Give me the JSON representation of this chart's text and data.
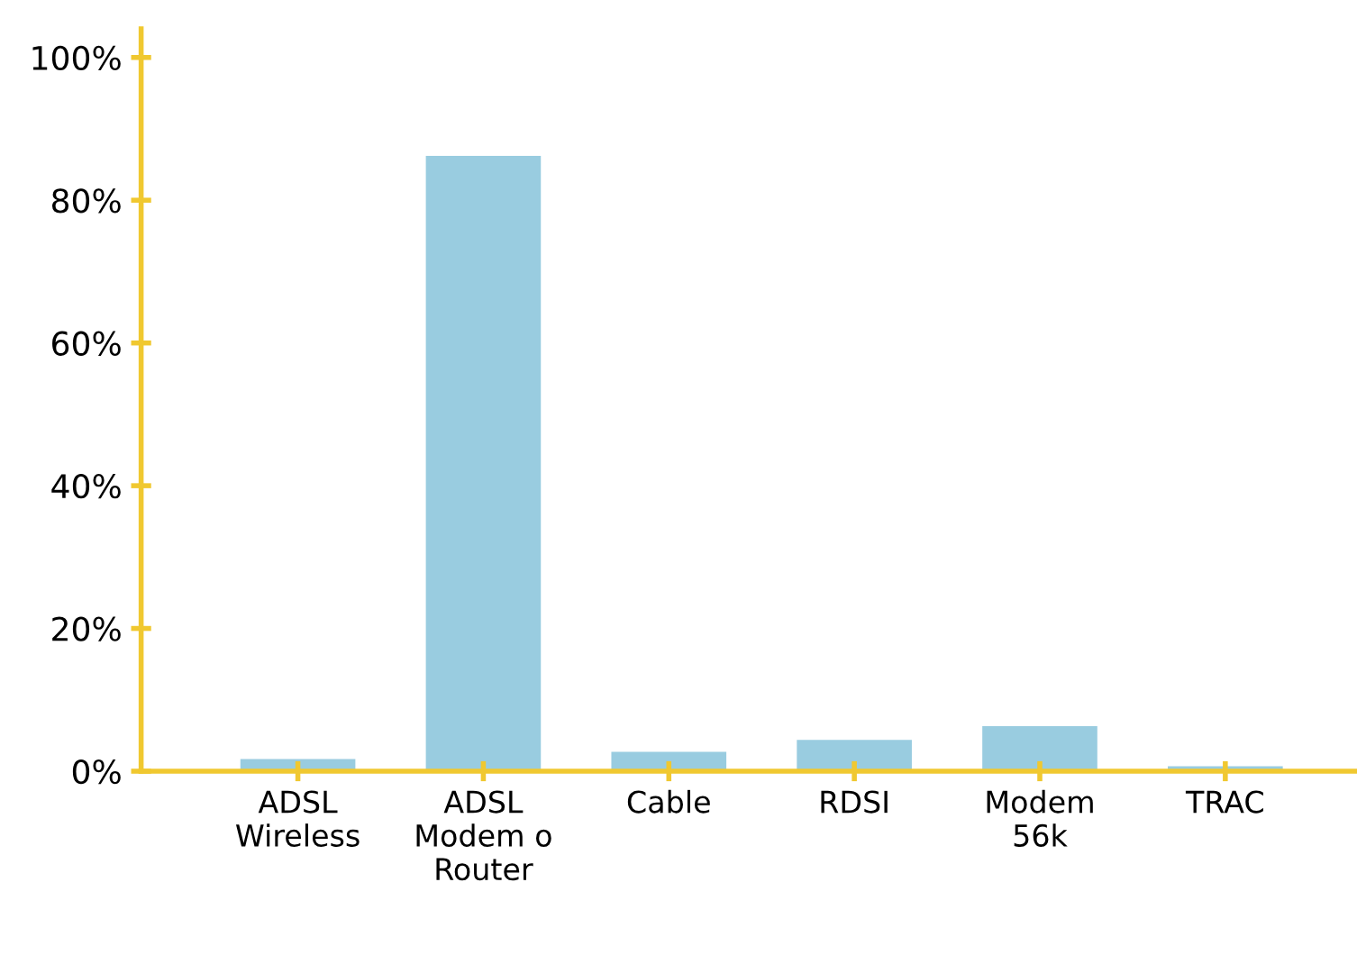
{
  "chart_data": {
    "type": "bar",
    "categories": [
      "ADSL\nWireless",
      "ADSL\nModem o\nRouter",
      "Cable",
      "RDSI",
      "Modem\n56k",
      "TRAC"
    ],
    "values": [
      1.7,
      86.2,
      2.7,
      4.4,
      6.3,
      0.7
    ],
    "color": "#99cce0",
    "ylim": [
      0,
      104
    ],
    "yticks": [
      {
        "value": 0,
        "label": "0%"
      },
      {
        "value": 20,
        "label": "20%"
      },
      {
        "value": 40,
        "label": "40%"
      },
      {
        "value": 60,
        "label": "60%"
      },
      {
        "value": 80,
        "label": "80%"
      },
      {
        "value": 100,
        "label": "100%"
      }
    ],
    "grid": false,
    "legend": false
  }
}
